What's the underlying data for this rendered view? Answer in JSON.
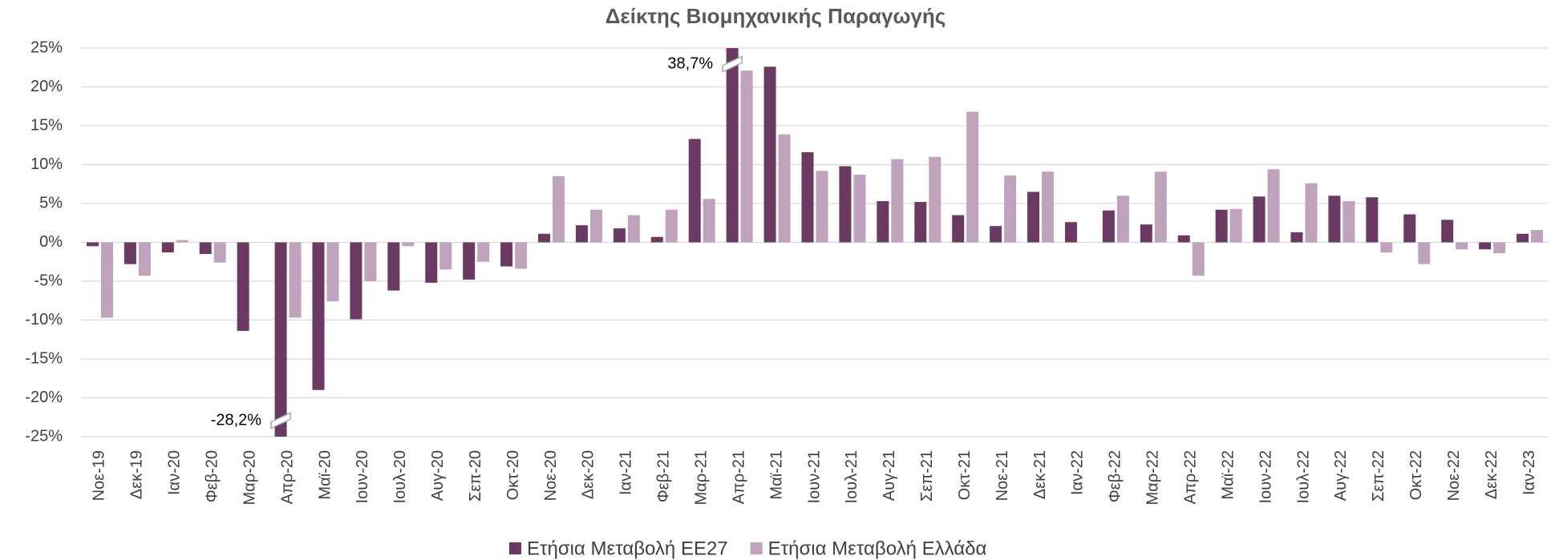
{
  "chart_data": {
    "type": "bar",
    "title": "Δείκτης Βιομηχανικής Παραγωγής",
    "categories": [
      "Νοε-19",
      "Δεκ-19",
      "Ιαν-20",
      "Φεβ-20",
      "Μαρ-20",
      "Απρ-20",
      "Μαϊ-20",
      "Ιουν-20",
      "Ιουλ-20",
      "Αυγ-20",
      "Σεπ-20",
      "Οκτ-20",
      "Νοε-20",
      "Δεκ-20",
      "Ιαν-21",
      "Φεβ-21",
      "Μαρ-21",
      "Απρ-21",
      "Μαϊ-21",
      "Ιουν-21",
      "Ιουλ-21",
      "Αυγ-21",
      "Σεπ-21",
      "Οκτ-21",
      "Νοε-21",
      "Δεκ-21",
      "Ιαν-22",
      "Φεβ-22",
      "Μαρ-22",
      "Απρ-22",
      "Μαϊ-22",
      "Ιουν-22",
      "Ιουλ-22",
      "Αυγ-22",
      "Σεπ-22",
      "Οκτ-22",
      "Νοε-22",
      "Δεκ-22",
      "Ιαν-23"
    ],
    "series": [
      {
        "name": "Ετήσια Μεταβολή ΕΕ27",
        "color": "#6b3a63",
        "values": [
          -0.5,
          -2.8,
          -1.3,
          -1.5,
          -11.4,
          -28.2,
          -19.0,
          -9.9,
          -6.2,
          -5.2,
          -4.8,
          -3.1,
          1.1,
          2.2,
          1.8,
          0.7,
          13.3,
          38.7,
          22.6,
          11.6,
          9.8,
          5.3,
          5.2,
          3.5,
          2.1,
          6.5,
          2.6,
          4.1,
          2.3,
          0.9,
          4.2,
          5.9,
          1.3,
          6.0,
          5.8,
          3.6,
          2.9,
          -0.9,
          1.1
        ],
        "value_labels": [
          null,
          null,
          null,
          null,
          null,
          "-28,2%",
          null,
          null,
          null,
          null,
          null,
          null,
          null,
          null,
          null,
          null,
          null,
          "38,7%",
          null,
          null,
          null,
          null,
          null,
          null,
          null,
          null,
          null,
          null,
          null,
          null,
          null,
          null,
          null,
          null,
          null,
          null,
          null,
          null,
          null
        ]
      },
      {
        "name": "Ετήσια Μεταβολή Ελλάδα",
        "color": "#bfa3bd",
        "values": [
          -9.7,
          -4.3,
          0.3,
          -2.6,
          null,
          -9.7,
          -7.6,
          -5.0,
          -0.5,
          -3.5,
          -2.5,
          -3.4,
          8.5,
          4.2,
          3.5,
          4.2,
          5.6,
          22.1,
          13.9,
          9.2,
          8.7,
          10.7,
          11.0,
          16.8,
          8.6,
          9.1,
          null,
          6.0,
          9.1,
          -4.3,
          4.3,
          9.4,
          7.6,
          5.3,
          -1.3,
          -2.8,
          -0.9,
          -1.4,
          1.6
        ]
      }
    ],
    "ylim": [
      -25,
      25
    ],
    "yticks": [
      {
        "value": -25,
        "label": "-25%"
      },
      {
        "value": -20,
        "label": "-20%"
      },
      {
        "value": -15,
        "label": "-15%"
      },
      {
        "value": -10,
        "label": "-10%"
      },
      {
        "value": -5,
        "label": "-5%"
      },
      {
        "value": 0,
        "label": "0%"
      },
      {
        "value": 5,
        "label": "5%"
      },
      {
        "value": 10,
        "label": "10%"
      },
      {
        "value": 15,
        "label": "15%"
      },
      {
        "value": 20,
        "label": "20%"
      },
      {
        "value": 25,
        "label": "25%"
      }
    ],
    "grid": true,
    "legend": "bottom"
  }
}
